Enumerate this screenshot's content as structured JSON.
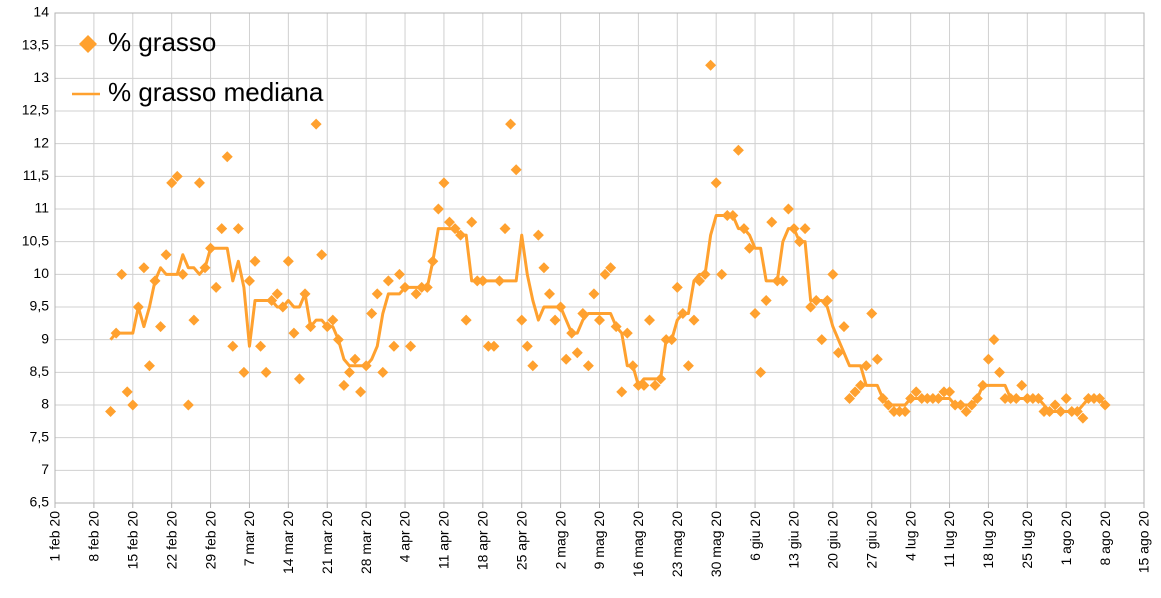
{
  "chart_data": {
    "type": "scatter",
    "x": [
      10,
      11,
      12,
      13,
      14,
      15,
      16,
      17,
      18,
      19,
      20,
      21,
      22,
      23,
      24,
      25,
      26,
      27,
      28,
      29,
      30,
      31,
      32,
      33,
      34,
      35,
      36,
      37,
      38,
      39,
      40,
      41,
      42,
      43,
      44,
      45,
      46,
      47,
      48,
      49,
      50,
      51,
      52,
      53,
      54,
      55,
      56,
      57,
      58,
      59,
      60,
      61,
      62,
      63,
      64,
      65,
      66,
      67,
      68,
      69,
      70,
      71,
      72,
      73,
      74,
      75,
      76,
      77,
      78,
      79,
      80,
      81,
      82,
      83,
      84,
      85,
      86,
      87,
      88,
      89,
      90,
      91,
      92,
      93,
      94,
      95,
      96,
      97,
      98,
      99,
      100,
      101,
      102,
      103,
      104,
      105,
      106,
      107,
      108,
      109,
      110,
      111,
      112,
      113,
      114,
      115,
      116,
      117,
      118,
      119,
      120,
      121,
      122,
      123,
      124,
      125,
      126,
      127,
      128,
      129,
      130,
      131,
      132,
      133,
      134,
      135,
      136,
      137,
      138,
      139,
      140,
      141,
      142,
      143,
      144,
      145,
      146,
      147,
      148,
      149,
      150,
      151,
      152,
      153,
      154,
      155,
      156,
      157,
      158,
      159,
      160,
      161,
      162,
      163,
      164,
      165,
      166,
      167,
      168,
      169,
      170,
      171,
      172,
      173,
      174,
      175,
      176,
      177,
      178,
      179,
      180,
      181,
      182,
      183,
      184,
      185,
      186,
      187,
      188,
      189
    ],
    "series": [
      {
        "name": "% grasso",
        "type": "scatter",
        "color": "#ffa12f",
        "values": [
          7.9,
          9.1,
          10.0,
          8.2,
          8.0,
          9.5,
          10.1,
          8.6,
          9.9,
          9.2,
          10.3,
          11.4,
          11.5,
          10.0,
          8.0,
          9.3,
          11.4,
          10.1,
          10.4,
          9.8,
          10.7,
          11.8,
          8.9,
          10.7,
          8.5,
          9.9,
          10.2,
          8.9,
          8.5,
          9.6,
          9.7,
          9.5,
          10.2,
          9.1,
          8.4,
          9.7,
          9.2,
          12.3,
          10.3,
          9.2,
          9.3,
          9.0,
          8.3,
          8.5,
          8.7,
          8.2,
          8.6,
          9.4,
          9.7,
          8.5,
          9.9,
          8.9,
          10.0,
          9.8,
          8.9,
          9.7,
          9.8,
          9.8,
          10.2,
          11.0,
          11.4,
          10.8,
          10.7,
          10.6,
          9.3,
          10.8,
          9.9,
          9.9,
          8.9,
          8.9,
          9.9,
          10.7,
          12.3,
          11.6,
          9.3,
          8.9,
          8.6,
          10.6,
          10.1,
          9.7,
          9.3,
          9.5,
          8.7,
          9.1,
          8.8,
          9.4,
          8.6,
          9.7,
          9.3,
          10.0,
          10.1,
          9.2,
          8.2,
          9.1,
          8.6,
          8.3,
          8.3,
          9.3,
          8.3,
          8.4,
          9.0,
          9.0,
          9.8,
          9.4,
          8.6,
          9.3,
          9.9,
          10.0,
          13.2,
          11.4,
          10.0,
          10.9,
          10.9,
          11.9,
          10.7,
          10.4,
          9.4,
          8.5,
          9.6,
          10.8,
          9.9,
          9.9,
          11.0,
          10.7,
          10.5,
          10.7,
          9.5,
          9.6,
          9.0,
          9.6,
          10.0,
          8.8,
          9.2,
          8.1,
          8.2,
          8.3,
          8.6,
          9.4,
          8.7,
          8.1,
          8.0,
          7.9,
          7.9,
          7.9,
          8.1,
          8.2,
          8.1,
          8.1,
          8.1,
          8.1,
          8.2,
          8.2,
          8.0,
          8.0,
          7.9,
          8.0,
          8.1,
          8.3,
          8.7,
          9.0,
          8.5,
          8.1,
          8.1,
          8.1,
          8.3,
          8.1,
          8.1,
          8.1,
          7.9,
          7.9,
          8.0,
          7.9,
          8.1,
          7.9,
          7.9,
          7.8,
          8.1,
          8.1,
          8.1,
          8.0
        ]
      },
      {
        "name": "% grasso mediana",
        "type": "line",
        "color": "#ffa12f",
        "values": [
          9.0,
          9.1,
          9.1,
          9.1,
          9.1,
          9.5,
          9.2,
          9.5,
          9.9,
          10.1,
          10.0,
          10.0,
          10.0,
          10.3,
          10.1,
          10.1,
          10.0,
          10.1,
          10.4,
          10.4,
          10.4,
          10.4,
          9.9,
          10.2,
          9.8,
          8.9,
          9.6,
          9.6,
          9.6,
          9.6,
          9.5,
          9.5,
          9.6,
          9.5,
          9.5,
          9.7,
          9.2,
          9.3,
          9.3,
          9.2,
          9.2,
          9.0,
          8.7,
          8.6,
          8.6,
          8.6,
          8.6,
          8.7,
          8.9,
          9.4,
          9.7,
          9.7,
          9.7,
          9.8,
          9.8,
          9.8,
          9.8,
          9.8,
          10.2,
          10.7,
          10.7,
          10.7,
          10.7,
          10.6,
          10.6,
          9.9,
          9.9,
          9.9,
          9.9,
          9.9,
          9.9,
          9.9,
          9.9,
          9.9,
          10.6,
          10.0,
          9.6,
          9.3,
          9.5,
          9.5,
          9.5,
          9.5,
          9.3,
          9.1,
          9.1,
          9.3,
          9.4,
          9.4,
          9.4,
          9.4,
          9.4,
          9.2,
          9.1,
          8.6,
          8.6,
          8.3,
          8.4,
          8.4,
          8.4,
          8.4,
          9.0,
          9.0,
          9.3,
          9.4,
          9.4,
          9.9,
          10.0,
          10.0,
          10.6,
          10.9,
          10.9,
          10.9,
          10.9,
          10.7,
          10.7,
          10.6,
          10.4,
          10.4,
          9.9,
          9.9,
          9.9,
          10.5,
          10.7,
          10.7,
          10.5,
          10.5,
          9.6,
          9.6,
          9.6,
          9.5,
          9.2,
          9.0,
          8.8,
          8.6,
          8.6,
          8.6,
          8.3,
          8.3,
          8.3,
          8.1,
          8.0,
          8.0,
          8.0,
          8.0,
          8.1,
          8.1,
          8.1,
          8.1,
          8.1,
          8.1,
          8.1,
          8.1,
          8.0,
          8.0,
          8.0,
          8.0,
          8.1,
          8.3,
          8.3,
          8.3,
          8.3,
          8.3,
          8.1,
          8.1,
          8.1,
          8.1,
          8.1,
          8.1,
          8.0,
          7.9,
          7.9,
          7.9,
          7.9,
          7.9,
          7.9,
          8.0,
          8.1,
          8.1,
          8.1,
          8.0
        ]
      }
    ],
    "xlim": [
      0,
      196
    ],
    "xticks": [
      {
        "value": 0,
        "label": "1 feb 20"
      },
      {
        "value": 7,
        "label": "8 feb 20"
      },
      {
        "value": 14,
        "label": "15 feb 20"
      },
      {
        "value": 21,
        "label": "22 feb 20"
      },
      {
        "value": 28,
        "label": "29 feb 20"
      },
      {
        "value": 35,
        "label": "7 mar 20"
      },
      {
        "value": 42,
        "label": "14 mar 20"
      },
      {
        "value": 49,
        "label": "21 mar 20"
      },
      {
        "value": 56,
        "label": "28 mar 20"
      },
      {
        "value": 63,
        "label": "4 apr 20"
      },
      {
        "value": 70,
        "label": "11 apr 20"
      },
      {
        "value": 77,
        "label": "18 apr 20"
      },
      {
        "value": 84,
        "label": "25 apr 20"
      },
      {
        "value": 91,
        "label": "2 mag 20"
      },
      {
        "value": 98,
        "label": "9 mag 20"
      },
      {
        "value": 105,
        "label": "16 mag 20"
      },
      {
        "value": 112,
        "label": "23 mag 20"
      },
      {
        "value": 119,
        "label": "30 mag 20"
      },
      {
        "value": 126,
        "label": "6 giu 20"
      },
      {
        "value": 133,
        "label": "13 giu 20"
      },
      {
        "value": 140,
        "label": "20 giu 20"
      },
      {
        "value": 147,
        "label": "27 giu 20"
      },
      {
        "value": 154,
        "label": "4 lug 20"
      },
      {
        "value": 161,
        "label": "11 lug 20"
      },
      {
        "value": 168,
        "label": "18 lug 20"
      },
      {
        "value": 175,
        "label": "25 lug 20"
      },
      {
        "value": 182,
        "label": "1 ago 20"
      },
      {
        "value": 189,
        "label": "8 ago 20"
      },
      {
        "value": 196,
        "label": "15 ago 20"
      }
    ],
    "ylim": [
      6.5,
      14
    ],
    "yticks": [
      {
        "value": 6.5,
        "label": "6,5"
      },
      7,
      {
        "value": 7.5,
        "label": "7,5"
      },
      8,
      {
        "value": 8.5,
        "label": "8,5"
      },
      9,
      {
        "value": 9.5,
        "label": "9,5"
      },
      10,
      {
        "value": 10.5,
        "label": "10,5"
      },
      11,
      {
        "value": 11.5,
        "label": "11,5"
      },
      12,
      {
        "value": 12.5,
        "label": "12,5"
      },
      13,
      {
        "value": 13.5,
        "label": "13,5"
      },
      14
    ],
    "grid": true,
    "legend": "top-left"
  }
}
